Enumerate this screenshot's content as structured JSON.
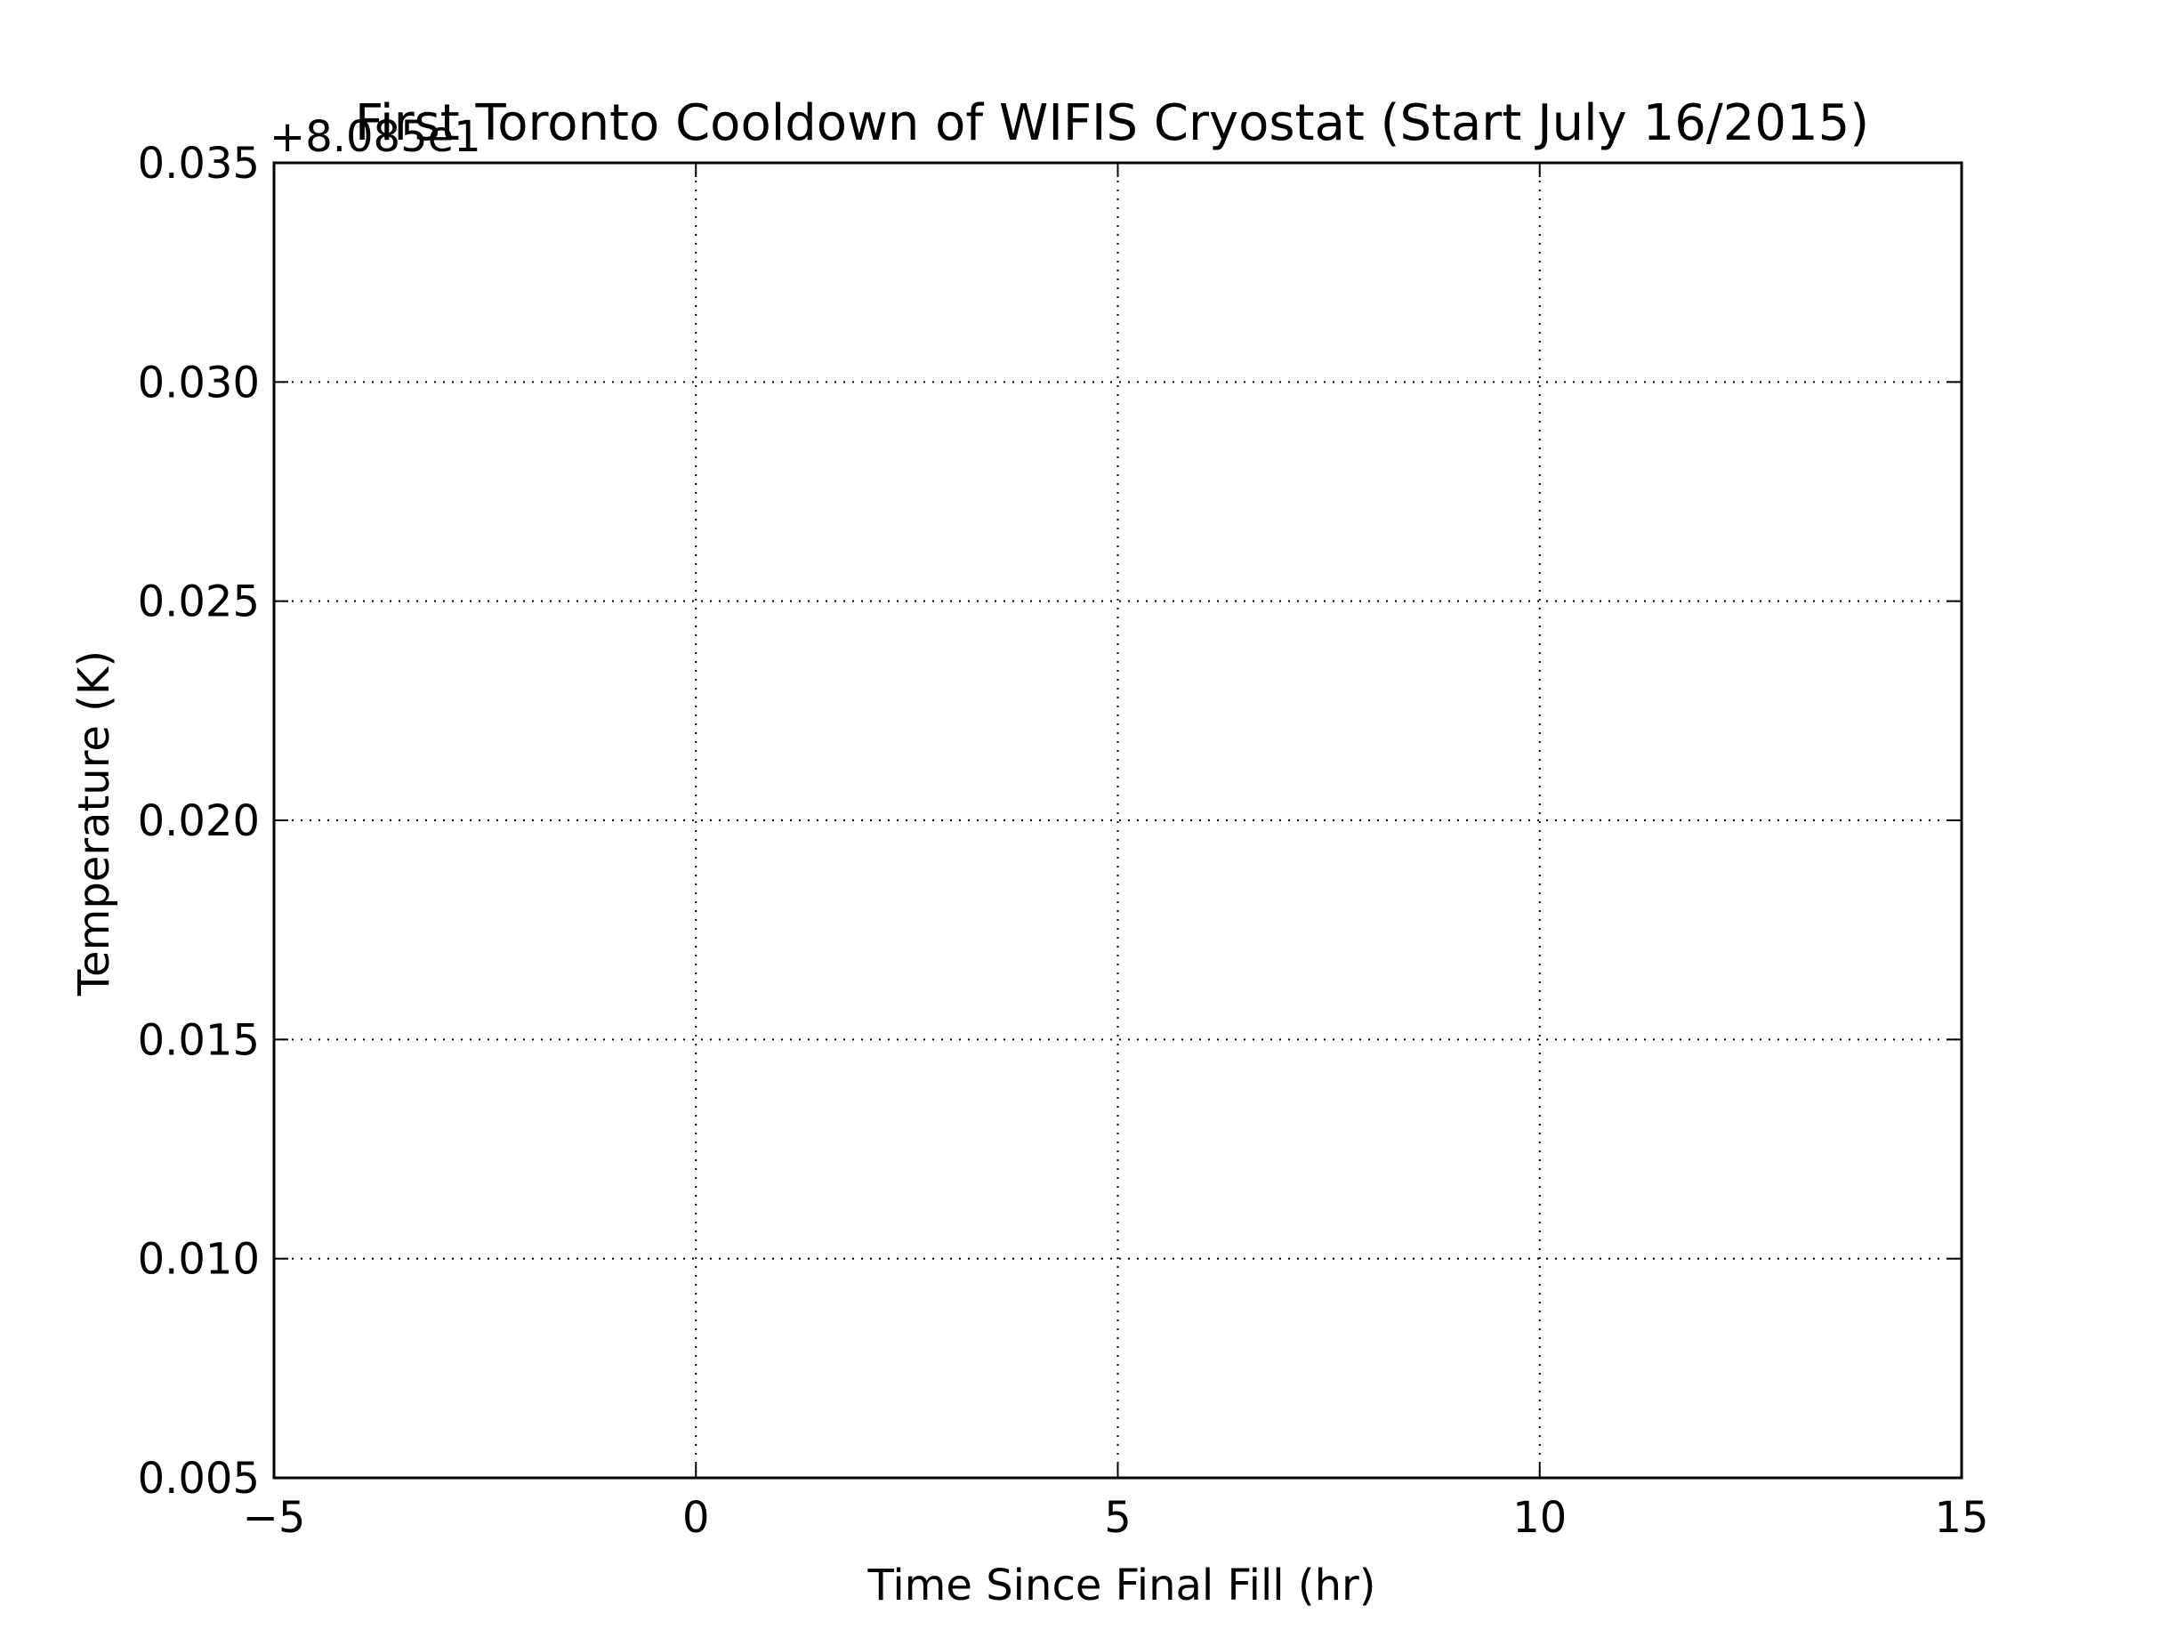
{
  "chart_data": {
    "type": "line",
    "title": "First Toronto Cooldown of WIFIS Cryostat (Start July 16/2015)",
    "xlabel": "Time Since Final Fill (hr)",
    "ylabel": "Temperature (K)",
    "y_offset_label": "+8.085e1",
    "xlim": [
      -5,
      15
    ],
    "ylim": [
      0.005,
      0.035
    ],
    "x_ticks": [
      -5,
      0,
      5,
      10,
      15
    ],
    "x_tick_labels": [
      "−5",
      "0",
      "5",
      "10",
      "15"
    ],
    "y_ticks": [
      0.005,
      0.01,
      0.015,
      0.02,
      0.025,
      0.03,
      0.035
    ],
    "y_tick_labels": [
      "0.005",
      "0.010",
      "0.015",
      "0.020",
      "0.025",
      "0.030",
      "0.035"
    ],
    "grid": true,
    "series": []
  }
}
